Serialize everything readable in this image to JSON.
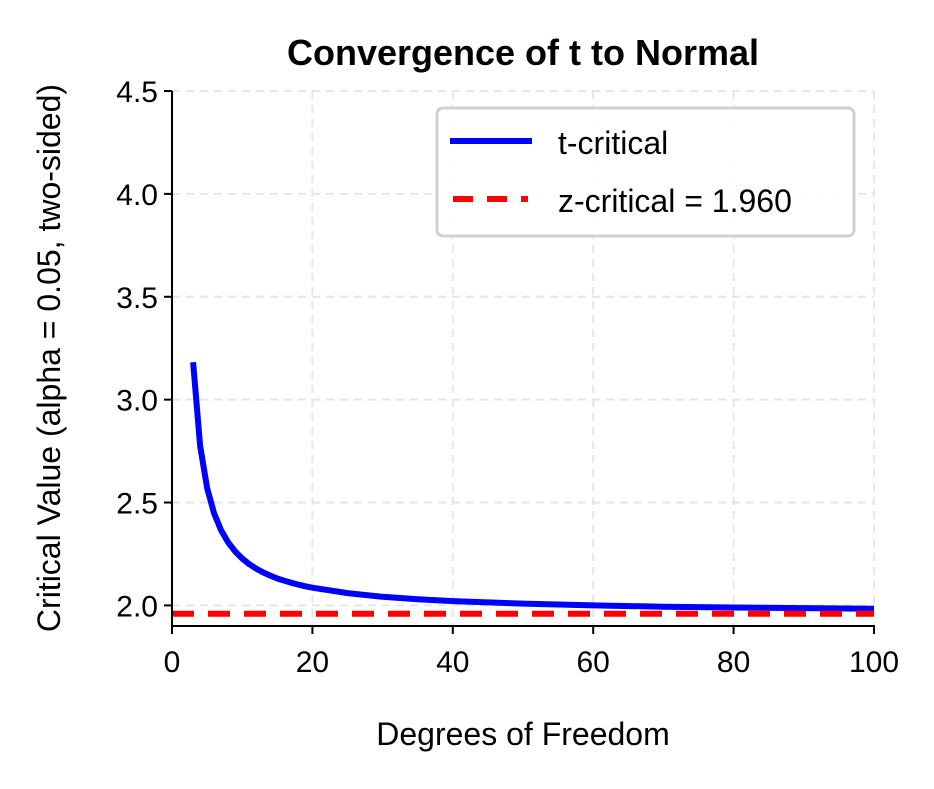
{
  "chart_data": {
    "type": "line",
    "title": "Convergence of t to Normal",
    "xlabel": "Degrees of Freedom",
    "ylabel": "Critical Value (alpha = 0.05, two-sided)",
    "xlim": [
      0,
      100
    ],
    "ylim": [
      1.9,
      4.5
    ],
    "xticks": [
      0,
      20,
      40,
      60,
      80,
      100
    ],
    "xtick_labels": [
      "0",
      "20",
      "40",
      "60",
      "80",
      "100"
    ],
    "yticks": [
      2.0,
      2.5,
      3.0,
      3.5,
      4.0,
      4.5
    ],
    "ytick_labels": [
      "2.0",
      "2.5",
      "3.0",
      "3.5",
      "4.0",
      "4.5"
    ],
    "grid": true,
    "legend_position": "top-right",
    "series": [
      {
        "name": "t-critical",
        "color": "#0000ff",
        "style": "solid",
        "x": [
          3,
          4,
          5,
          6,
          7,
          8,
          9,
          10,
          11,
          12,
          13,
          14,
          15,
          16,
          17,
          18,
          19,
          20,
          25,
          30,
          35,
          40,
          50,
          60,
          70,
          80,
          90,
          100
        ],
        "y": [
          3.182,
          2.776,
          2.571,
          2.447,
          2.365,
          2.306,
          2.262,
          2.228,
          2.201,
          2.179,
          2.16,
          2.145,
          2.131,
          2.12,
          2.11,
          2.101,
          2.093,
          2.086,
          2.06,
          2.042,
          2.03,
          2.021,
          2.009,
          2.0,
          1.994,
          1.99,
          1.987,
          1.984
        ]
      },
      {
        "name": "z-critical = 1.960",
        "color": "#ff0000",
        "style": "dashed",
        "x": [
          0,
          100
        ],
        "y": [
          1.96,
          1.96
        ]
      }
    ]
  }
}
